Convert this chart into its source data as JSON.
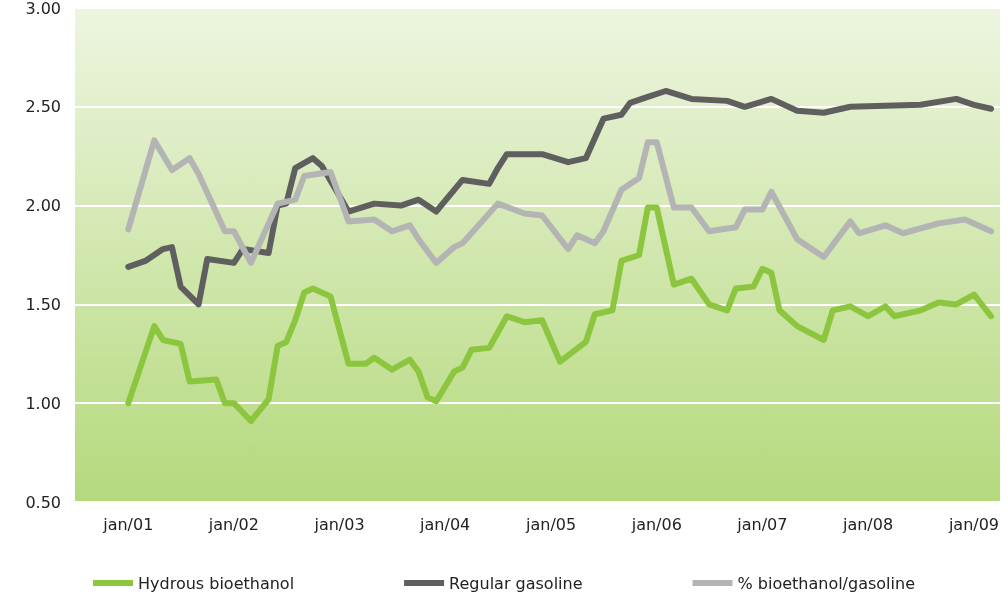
{
  "chart_data": {
    "type": "line",
    "marker": "none",
    "grid": "y",
    "legend": "bottom",
    "line_style": "solid",
    "xlim": [
      "2000-07",
      "2009-04"
    ],
    "xticks": [
      {
        "value": "2001-01",
        "label": "jan/01"
      },
      {
        "value": "2002-01",
        "label": "jan/02"
      },
      {
        "value": "2003-01",
        "label": "jan/03"
      },
      {
        "value": "2004-01",
        "label": "jan/04"
      },
      {
        "value": "2005-01",
        "label": "jan/05"
      },
      {
        "value": "2006-01",
        "label": "jan/06"
      },
      {
        "value": "2007-01",
        "label": "jan/07"
      },
      {
        "value": "2008-01",
        "label": "jan/08"
      },
      {
        "value": "2009-01",
        "label": "jan/09"
      }
    ],
    "ylim": [
      0.5,
      3
    ],
    "yticks": [
      {
        "value": 0.5,
        "label": "0.50"
      },
      {
        "value": 1,
        "label": "1.00"
      },
      {
        "value": 1.5,
        "label": "1.50"
      },
      {
        "value": 2,
        "label": "2.00"
      },
      {
        "value": 2.5,
        "label": "2.50"
      },
      {
        "value": 3,
        "label": "3.00"
      }
    ],
    "series": [
      {
        "name": "Hydrous bioethanol",
        "color": "#8cc63f",
        "x": [
          "2001-01",
          "2001-04",
          "2001-05",
          "2001-07",
          "2001-08",
          "2001-11",
          "2001-12",
          "2002-01",
          "2002-03",
          "2002-05",
          "2002-06",
          "2002-07",
          "2002-08",
          "2002-09",
          "2002-10",
          "2002-12",
          "2003-02",
          "2003-04",
          "2003-05",
          "2003-07",
          "2003-09",
          "2003-10",
          "2003-11",
          "2003-12",
          "2004-02",
          "2004-03",
          "2004-04",
          "2004-06",
          "2004-08",
          "2004-10",
          "2004-12",
          "2005-02",
          "2005-05",
          "2005-06",
          "2005-08",
          "2005-09",
          "2005-11",
          "2005-12",
          "2006-01",
          "2006-03",
          "2006-05",
          "2006-07",
          "2006-09",
          "2006-10",
          "2006-12",
          "2007-01",
          "2007-02",
          "2007-03",
          "2007-05",
          "2007-08",
          "2007-09",
          "2007-11",
          "2008-01",
          "2008-03",
          "2008-04",
          "2008-07",
          "2008-09",
          "2008-11",
          "2009-01",
          "2009-03"
        ],
        "values": [
          1.0,
          1.39,
          1.32,
          1.3,
          1.11,
          1.12,
          1.0,
          1.0,
          0.91,
          1.02,
          1.29,
          1.31,
          1.42,
          1.56,
          1.58,
          1.54,
          1.2,
          1.2,
          1.23,
          1.17,
          1.22,
          1.16,
          1.03,
          1.01,
          1.16,
          1.18,
          1.27,
          1.28,
          1.44,
          1.41,
          1.42,
          1.21,
          1.31,
          1.45,
          1.47,
          1.72,
          1.75,
          1.99,
          1.99,
          1.6,
          1.63,
          1.5,
          1.47,
          1.58,
          1.59,
          1.68,
          1.66,
          1.47,
          1.39,
          1.32,
          1.47,
          1.49,
          1.44,
          1.49,
          1.44,
          1.47,
          1.51,
          1.5,
          1.55,
          1.44
        ]
      },
      {
        "name": "Regular gasoline",
        "color": "#5f5f5f",
        "x": [
          "2001-01",
          "2001-03",
          "2001-05",
          "2001-06",
          "2001-07",
          "2001-09",
          "2001-10",
          "2002-01",
          "2002-02",
          "2002-05",
          "2002-06",
          "2002-07",
          "2002-08",
          "2002-10",
          "2002-11",
          "2003-02",
          "2003-05",
          "2003-08",
          "2003-10",
          "2003-12",
          "2004-03",
          "2004-06",
          "2004-07",
          "2004-08",
          "2004-12",
          "2005-03",
          "2005-05",
          "2005-07",
          "2005-09",
          "2005-10",
          "2005-12",
          "2006-02",
          "2006-05",
          "2006-09",
          "2006-11",
          "2007-02",
          "2007-05",
          "2007-08",
          "2007-11",
          "2008-07",
          "2008-11",
          "2009-01",
          "2009-03"
        ],
        "values": [
          1.69,
          1.72,
          1.78,
          1.79,
          1.59,
          1.5,
          1.73,
          1.71,
          1.78,
          1.76,
          2.0,
          2.01,
          2.19,
          2.24,
          2.2,
          1.97,
          2.01,
          2.0,
          2.03,
          1.97,
          2.13,
          2.11,
          2.19,
          2.26,
          2.26,
          2.22,
          2.24,
          2.44,
          2.46,
          2.52,
          2.55,
          2.58,
          2.54,
          2.53,
          2.5,
          2.54,
          2.48,
          2.47,
          2.5,
          2.51,
          2.54,
          2.51,
          2.49
        ]
      },
      {
        "name": "% bioethanol/gasoline",
        "color": "#b4b4b4",
        "x": [
          "2001-01",
          "2001-04",
          "2001-06",
          "2001-08",
          "2001-09",
          "2001-12",
          "2002-01",
          "2002-03",
          "2002-06",
          "2002-08",
          "2002-09",
          "2002-12",
          "2003-02",
          "2003-05",
          "2003-07",
          "2003-09",
          "2003-10",
          "2003-12",
          "2004-02",
          "2004-03",
          "2004-07",
          "2004-10",
          "2004-12",
          "2005-03",
          "2005-04",
          "2005-06",
          "2005-07",
          "2005-09",
          "2005-11",
          "2005-12",
          "2006-01",
          "2006-03",
          "2006-05",
          "2006-07",
          "2006-10",
          "2006-11",
          "2007-01",
          "2007-02",
          "2007-05",
          "2007-08",
          "2007-11",
          "2007-12",
          "2008-03",
          "2008-05",
          "2008-09",
          "2008-12",
          "2009-03"
        ],
        "values": [
          1.88,
          2.33,
          2.18,
          2.24,
          2.16,
          1.87,
          1.87,
          1.71,
          2.01,
          2.03,
          2.15,
          2.17,
          1.92,
          1.93,
          1.87,
          1.9,
          1.83,
          1.71,
          1.79,
          1.81,
          2.01,
          1.96,
          1.95,
          1.78,
          1.85,
          1.81,
          1.87,
          2.08,
          2.14,
          2.32,
          2.32,
          1.99,
          1.99,
          1.87,
          1.89,
          1.98,
          1.98,
          2.07,
          1.83,
          1.74,
          1.92,
          1.86,
          1.9,
          1.86,
          1.91,
          1.93,
          1.87
        ]
      }
    ]
  }
}
